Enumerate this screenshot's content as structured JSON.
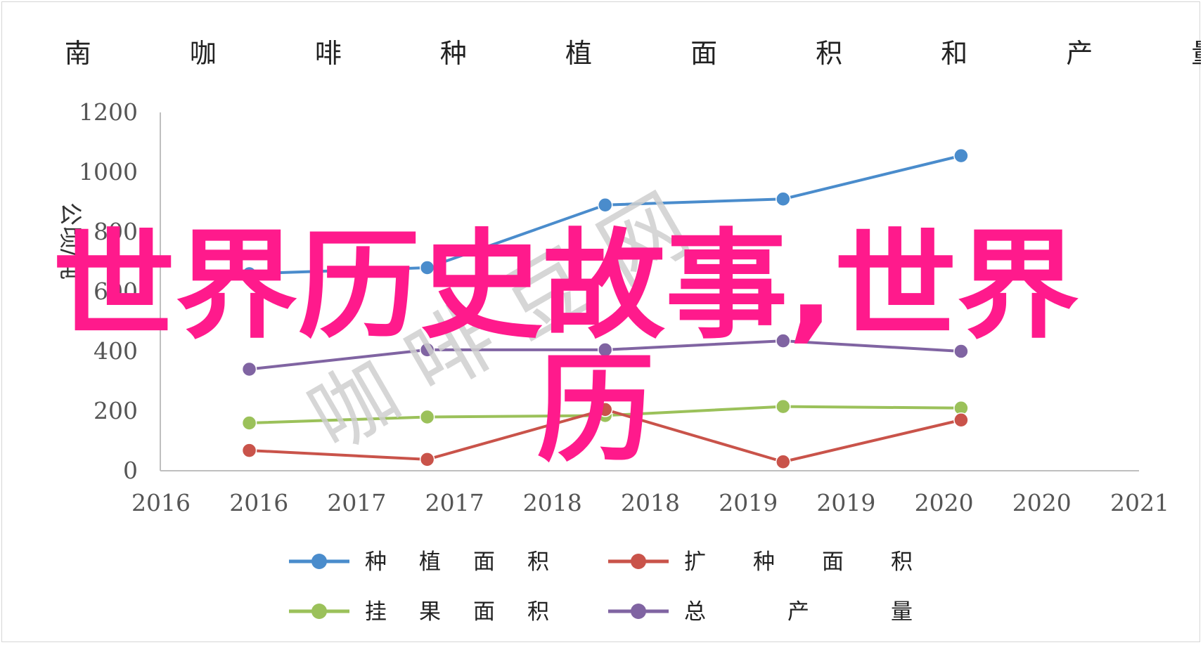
{
  "chart_data": {
    "type": "line",
    "title": "海 南 咖 啡 种 植 面 积 和 产 量",
    "ylabel": "公顷/吨",
    "ylim": [
      0,
      1200
    ],
    "yticks": [
      "0",
      "200",
      "400",
      "600",
      "800",
      "1000",
      "1200"
    ],
    "xticks": [
      "2016",
      "2016",
      "2017",
      "2017",
      "2018",
      "2018",
      "2019",
      "2019",
      "2020",
      "2020",
      "2021"
    ],
    "x": [
      2016,
      2017,
      2018,
      2019,
      2020
    ],
    "grid": false,
    "legend_position": "bottom",
    "series": [
      {
        "name": "种 植 面 积",
        "color": "#4a8ccc",
        "values": [
          660,
          680,
          890,
          910,
          1055
        ]
      },
      {
        "name": "扩 种 面 积",
        "color": "#c9534a",
        "values": [
          68,
          38,
          205,
          30,
          170
        ]
      },
      {
        "name": "挂 果 面 积",
        "color": "#9bc15a",
        "values": [
          160,
          180,
          185,
          215,
          210
        ]
      },
      {
        "name": "总 产 量",
        "color": "#8064a2",
        "values": [
          340,
          405,
          405,
          435,
          400
        ]
      }
    ]
  },
  "legend": {
    "items": [
      "种 植 面 积",
      "扩 种 面 积",
      "挂 果 面 积",
      "总 产 量"
    ]
  },
  "watermark": {
    "overlay_text_line1": "世界历史故事,世界",
    "overlay_text_line2": "历",
    "gray_text": "咖 啡 豆 网"
  }
}
